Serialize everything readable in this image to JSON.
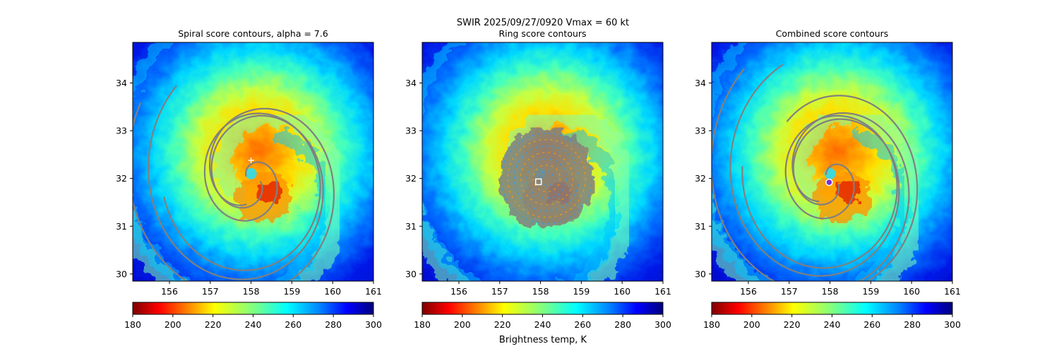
{
  "figure": {
    "suptitle": "SWIR  2025/09/27/0920    Vmax = 60 kt",
    "colorbar_label": "Brightness temp, K"
  },
  "colors": {
    "cmap_jet_reversed": [
      "#7f0000",
      "#ff0000",
      "#ff8000",
      "#ffff00",
      "#80ff80",
      "#00ffff",
      "#0080ff",
      "#0000ff",
      "#00007f"
    ],
    "contour": "#808080",
    "marker_center": "#ffffff",
    "marker_combined_fill": "#7b2fd0"
  },
  "chart_data": [
    {
      "type": "heatmap",
      "title": "Spiral score contours, alpha =  7.6",
      "xlim": [
        155.1,
        161.0
      ],
      "ylim": [
        29.85,
        34.85
      ],
      "xticks": [
        "156",
        "157",
        "158",
        "159",
        "160",
        "161"
      ],
      "yticks": [
        "30",
        "31",
        "32",
        "33",
        "34"
      ],
      "overlay": "spiral-contours",
      "center_marker": {
        "lon": 158.0,
        "lat": 32.38,
        "symbol": "+"
      },
      "colorbar": {
        "min": 180,
        "max": 300,
        "ticks": [
          "180",
          "200",
          "220",
          "240",
          "260",
          "280",
          "300"
        ]
      }
    },
    {
      "type": "heatmap",
      "title": "Ring score contours",
      "xlim": [
        155.1,
        161.0
      ],
      "ylim": [
        29.85,
        34.85
      ],
      "xticks": [
        "156",
        "157",
        "158",
        "159",
        "160",
        "161"
      ],
      "yticks": [
        "30",
        "31",
        "32",
        "33",
        "34"
      ],
      "overlay": "ring-contours",
      "center_marker": {
        "lon": 157.95,
        "lat": 31.93,
        "symbol": "square"
      },
      "colorbar": {
        "min": 180,
        "max": 300,
        "ticks": [
          "180",
          "200",
          "220",
          "240",
          "260",
          "280",
          "300"
        ]
      }
    },
    {
      "type": "heatmap",
      "title": "Combined score contours",
      "xlim": [
        155.1,
        161.0
      ],
      "ylim": [
        29.85,
        34.85
      ],
      "xticks": [
        "156",
        "157",
        "158",
        "159",
        "160",
        "161"
      ],
      "yticks": [
        "30",
        "31",
        "32",
        "33",
        "34"
      ],
      "overlay": "combined-contours",
      "center_marker": {
        "lon": 157.98,
        "lat": 31.92,
        "symbol": "circle"
      },
      "colorbar": {
        "min": 180,
        "max": 300,
        "ticks": [
          "180",
          "200",
          "220",
          "240",
          "260",
          "280",
          "300"
        ]
      }
    }
  ]
}
